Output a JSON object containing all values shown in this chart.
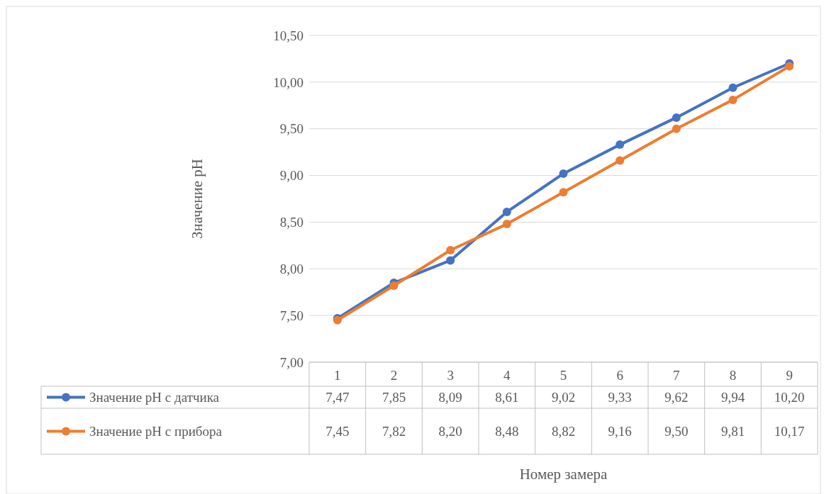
{
  "chart_data": {
    "type": "line",
    "annotations": [
      "Номер замера"
    ],
    "ylabel": "Значение pH",
    "categories": [
      "1",
      "2",
      "3",
      "4",
      "5",
      "6",
      "7",
      "8",
      "9"
    ],
    "series": [
      {
        "name": "Значение pH с датчика",
        "color": "#4472c4",
        "values": [
          7.47,
          7.85,
          8.09,
          8.61,
          9.02,
          9.33,
          9.62,
          9.94,
          10.2
        ],
        "value_labels": [
          "7,47",
          "7,85",
          "8,09",
          "8,61",
          "9,02",
          "9,33",
          "9,62",
          "9,94",
          "10,20"
        ]
      },
      {
        "name": "Значение pH с прибора",
        "color": "#ed7d31",
        "values": [
          7.45,
          7.82,
          8.2,
          8.48,
          8.82,
          9.16,
          9.5,
          9.81,
          10.17
        ],
        "value_labels": [
          "7,45",
          "7,82",
          "8,20",
          "8,48",
          "8,82",
          "9,16",
          "9,50",
          "9,81",
          "10,17"
        ]
      }
    ],
    "ylim": [
      7,
      10.5
    ],
    "yticks": [
      {
        "value": 7,
        "label": "7,00"
      },
      {
        "value": 7.5,
        "label": "7,50"
      },
      {
        "value": 8,
        "label": "8,00"
      },
      {
        "value": 8.5,
        "label": "8,50"
      },
      {
        "value": 9,
        "label": "9,00"
      },
      {
        "value": 9.5,
        "label": "9,50"
      },
      {
        "value": 10,
        "label": "10,00"
      },
      {
        "value": 10.5,
        "label": "10,50"
      }
    ],
    "grid": "y",
    "marker": "circle",
    "line_style": "solid",
    "legend": "bottom"
  }
}
